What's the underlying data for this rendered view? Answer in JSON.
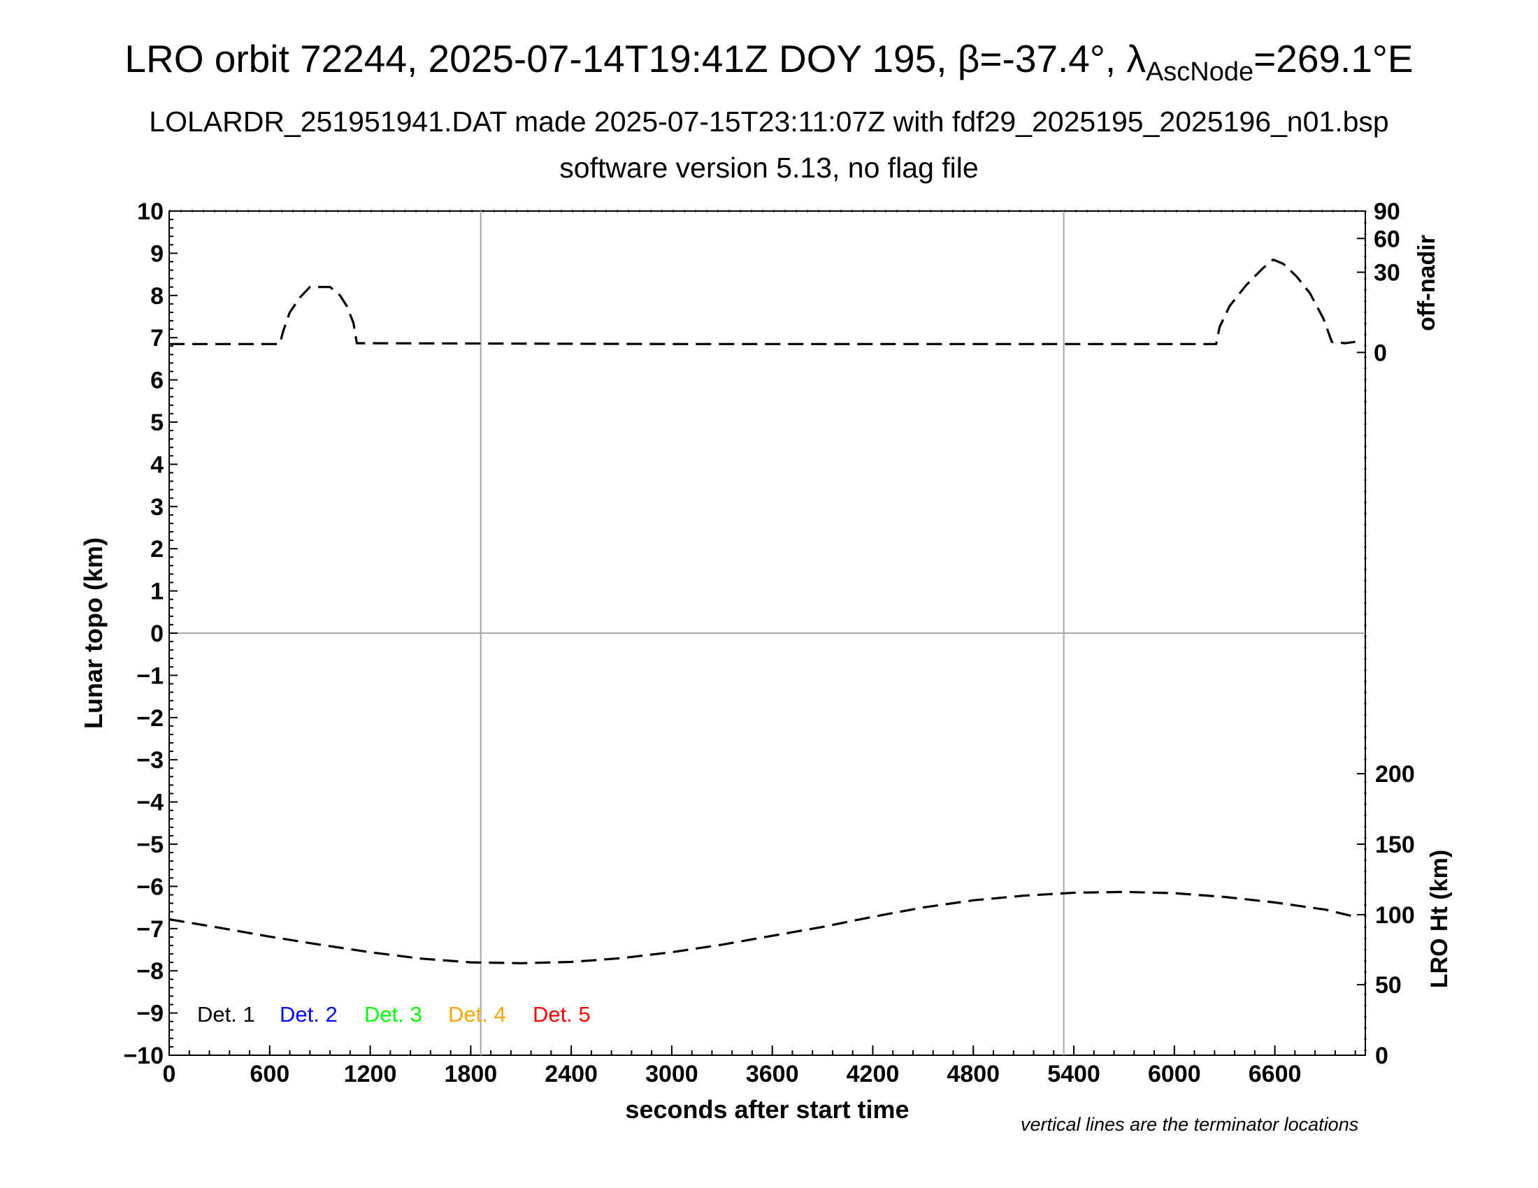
{
  "title": {
    "line1_a": "LRO orbit 72244, 2025-07-14T19:41Z DOY 195, β=-37.4°, λ",
    "line1_sub": "AscNode",
    "line1_b": "=269.1°E",
    "line2": "LOLARDR_251951941.DAT made 2025-07-15T23:11:07Z with fdf29_2025195_2025196_n01.bsp",
    "line3": "software version 5.13, no flag file"
  },
  "footnote": "vertical lines are the terminator locations",
  "chart_data": {
    "type": "line",
    "xlabel": "seconds after start time",
    "ylabel": "Lunar topo (km)",
    "xlim": [
      0,
      7140
    ],
    "ylim": [
      -10,
      10
    ],
    "x_ticks": [
      "0",
      "600",
      "1200",
      "1800",
      "2400",
      "3000",
      "3600",
      "4200",
      "4800",
      "5400",
      "6000",
      "6600"
    ],
    "y_ticks": [
      "−10",
      "−9",
      "−8",
      "−7",
      "−6",
      "−5",
      "−4",
      "−3",
      "−2",
      "−1",
      "0",
      "1",
      "2",
      "3",
      "4",
      "5",
      "6",
      "7",
      "8",
      "9",
      "10"
    ],
    "terminator_x": [
      1860,
      5340
    ],
    "right_axis_offnadir": {
      "label": "off-nadir",
      "ticks": [
        {
          "label": "90",
          "value": 90,
          "topo": 10
        },
        {
          "label": "60",
          "value": 60,
          "topo": 9.35
        },
        {
          "label": "30",
          "value": 30,
          "topo": 8.55
        },
        {
          "label": "0",
          "value": 0,
          "topo": 6.65
        }
      ]
    },
    "right_axis_height": {
      "label": "LRO Ht (km)",
      "ticks": [
        {
          "label": "200",
          "value": 200,
          "topo": -3.33
        },
        {
          "label": "150",
          "value": 150,
          "topo": -5
        },
        {
          "label": "100",
          "value": 100,
          "topo": -6.67
        },
        {
          "label": "50",
          "value": 50,
          "topo": -8.33
        },
        {
          "label": "0",
          "value": 0,
          "topo": -10
        }
      ]
    },
    "series": [
      {
        "name": "off-nadir",
        "style": "dashed",
        "color": "#000000",
        "x": [
          0,
          660,
          680,
          720,
          780,
          840,
          900,
          960,
          1020,
          1060,
          1100,
          1120,
          3000,
          6250,
          6270,
          6330,
          6430,
          6530,
          6590,
          6650,
          6730,
          6810,
          6890,
          6940,
          7020,
          7080
        ],
        "y": [
          6.85,
          6.85,
          7.15,
          7.6,
          7.95,
          8.2,
          8.2,
          8.2,
          8.0,
          7.75,
          7.35,
          6.87,
          6.85,
          6.85,
          7.25,
          7.75,
          8.25,
          8.65,
          8.85,
          8.75,
          8.45,
          8.05,
          7.45,
          6.9,
          6.87,
          6.9
        ]
      },
      {
        "name": "LRO Ht",
        "style": "dashed",
        "color": "#000000",
        "x": [
          0,
          300,
          600,
          900,
          1200,
          1500,
          1800,
          2100,
          2400,
          2700,
          3000,
          3300,
          3600,
          3900,
          4200,
          4500,
          4800,
          5100,
          5400,
          5700,
          6000,
          6300,
          6600,
          6900,
          7080
        ],
        "y": [
          -6.78,
          -6.98,
          -7.19,
          -7.38,
          -7.56,
          -7.71,
          -7.8,
          -7.82,
          -7.79,
          -7.7,
          -7.56,
          -7.38,
          -7.17,
          -6.96,
          -6.72,
          -6.5,
          -6.33,
          -6.22,
          -6.15,
          -6.13,
          -6.16,
          -6.25,
          -6.38,
          -6.55,
          -6.72
        ]
      }
    ],
    "legend": {
      "placement": "bottom-left",
      "entries": [
        {
          "label": "Det. 1",
          "color": "#000000"
        },
        {
          "label": "Det. 2",
          "color": "#0000ff"
        },
        {
          "label": "Det. 3",
          "color": "#00ff00"
        },
        {
          "label": "Det. 4",
          "color": "#ffa500"
        },
        {
          "label": "Det. 5",
          "color": "#ff0000"
        }
      ]
    },
    "grid": false,
    "zero_line": true
  }
}
